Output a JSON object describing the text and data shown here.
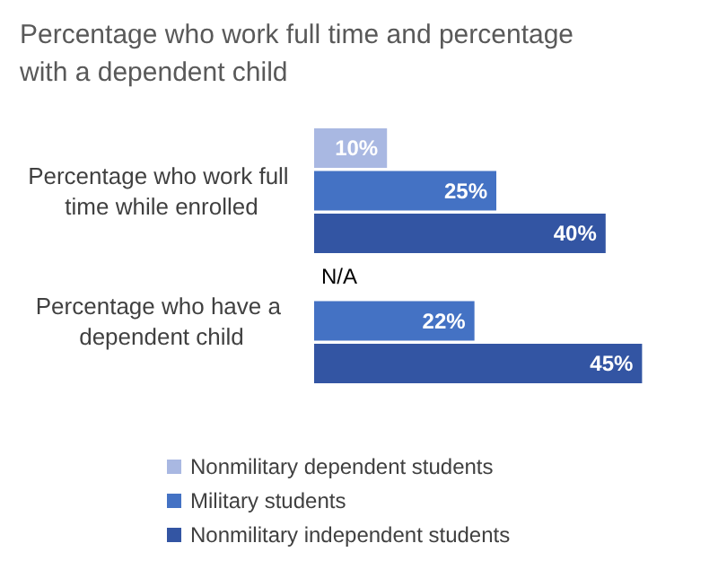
{
  "chart_data": {
    "type": "bar",
    "orientation": "horizontal",
    "title": "Percentage who work full time and percentage with a dependent child",
    "categories": [
      "Percentage who work full time while enrolled",
      "Percentage who have a dependent child"
    ],
    "series": [
      {
        "name": "Nonmilitary dependent students",
        "color": "#a9b8e2",
        "values": [
          10,
          null
        ],
        "value_labels": [
          "10%",
          "N/A"
        ]
      },
      {
        "name": "Military students",
        "color": "#4472c4",
        "values": [
          25,
          22
        ],
        "value_labels": [
          "25%",
          "22%"
        ]
      },
      {
        "name": "Nonmilitary independent students",
        "color": "#3355a3",
        "values": [
          40,
          45
        ],
        "value_labels": [
          "40%",
          "45%"
        ]
      }
    ],
    "tick_labels": "y",
    "grid": false,
    "legend": "bottom"
  }
}
